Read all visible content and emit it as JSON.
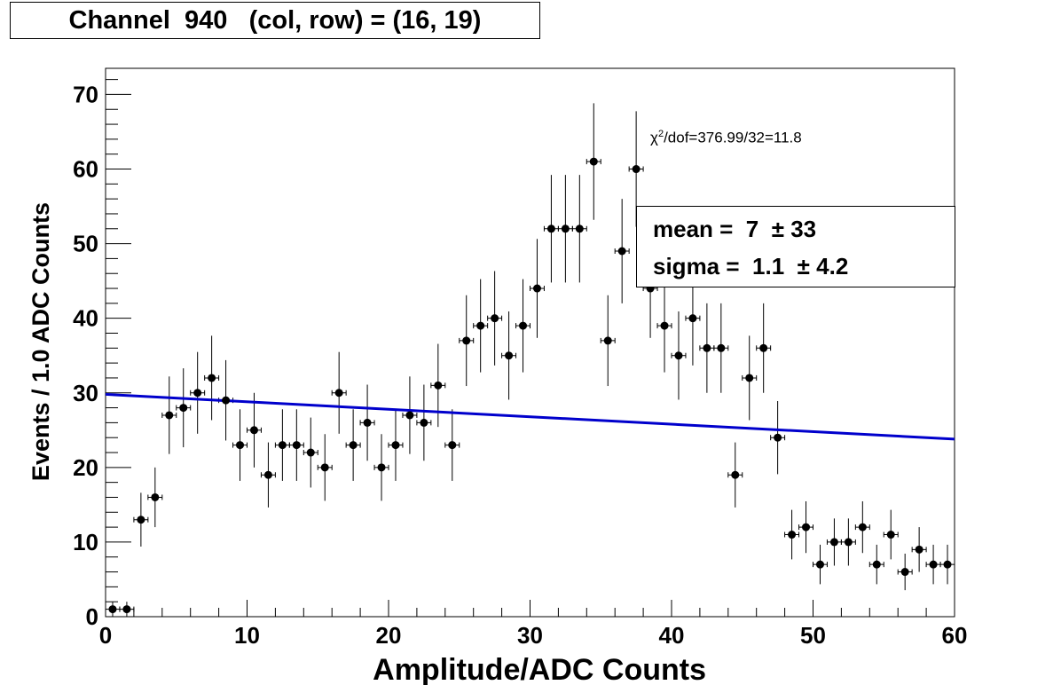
{
  "title": "Channel  940   (col, row) = (16, 19)",
  "chi2": {
    "symbol": "χ",
    "exp": "2",
    "text": "/dof=376.99/32=11.8"
  },
  "stats": [
    {
      "name": "mean",
      "value": "7",
      "error": "33"
    },
    {
      "name": "sigma",
      "value": "1.1",
      "error": "4.2"
    }
  ],
  "stat_separator": " =  ",
  "pm": "±",
  "colors": {
    "points": "#000000",
    "fit": "#0000cc"
  },
  "chart_data": {
    "type": "scatter",
    "title": "Channel  940   (col, row) = (16, 19)",
    "xlabel": "Amplitude/ADC Counts",
    "ylabel": "Events / 1.0 ADC Counts",
    "xlim": [
      0,
      60
    ],
    "ylim": [
      0,
      73.5
    ],
    "xticks": [
      0,
      10,
      20,
      30,
      40,
      50,
      60
    ],
    "yticks": [
      0,
      10,
      20,
      30,
      40,
      50,
      60,
      70
    ],
    "grid": false,
    "series": [
      {
        "x": [
          0.5,
          1.5,
          2.5,
          3.5,
          4.5,
          5.5,
          6.5,
          7.5,
          8.5,
          9.5,
          10.5,
          11.5,
          12.5,
          13.5,
          14.5,
          15.5,
          16.5,
          17.5,
          18.5,
          19.5,
          20.5,
          21.5,
          22.5,
          23.5,
          24.5,
          25.5,
          26.5,
          27.5,
          28.5,
          29.5,
          30.5,
          31.5,
          32.5,
          33.5,
          34.5,
          35.5,
          36.5,
          37.5,
          38.5,
          39.5,
          40.5,
          41.5,
          42.5,
          43.5,
          44.5,
          45.5,
          46.5,
          47.5,
          48.5,
          49.5,
          50.5,
          51.5,
          52.5,
          53.5,
          54.5,
          55.5,
          56.5,
          57.5,
          58.5,
          59.5
        ],
        "y": [
          1,
          1,
          13,
          16,
          27,
          28,
          30,
          32,
          29,
          23,
          25,
          19,
          23,
          23,
          22,
          20,
          30,
          23,
          26,
          20,
          23,
          27,
          26,
          31,
          23,
          37,
          39,
          40,
          35,
          39,
          44,
          52,
          52,
          52,
          61,
          37,
          49,
          60,
          44,
          39,
          35,
          40,
          36,
          36,
          19,
          32,
          36,
          24,
          11,
          12,
          7,
          10,
          10,
          12,
          7,
          11,
          6,
          9,
          7,
          7
        ]
      }
    ],
    "fit_line": {
      "x": [
        0,
        60
      ],
      "y": [
        29.8,
        23.8
      ]
    }
  }
}
